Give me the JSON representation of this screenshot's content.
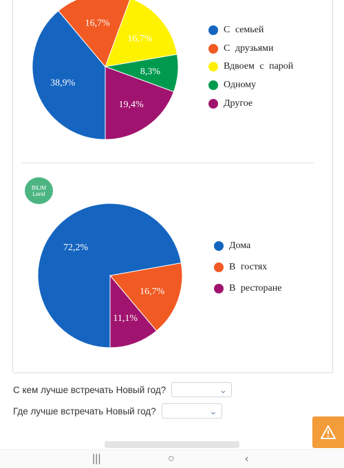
{
  "chart_data": [
    {
      "type": "pie",
      "categories": [
        "С семьей",
        "С друзьями",
        "Вдвоем с парой",
        "Одному",
        "Другое"
      ],
      "values": [
        38.9,
        16.7,
        16.7,
        8.3,
        19.4
      ],
      "value_labels": [
        "38,9%",
        "16,7%",
        "16,7%",
        "8,3%",
        "19,4%"
      ],
      "colors": [
        "#1565c0",
        "#f15a22",
        "#fff200",
        "#009a4e",
        "#a0136e"
      ],
      "legend_position": "right"
    },
    {
      "type": "pie",
      "categories": [
        "Дома",
        "В гостях",
        "В ресторане"
      ],
      "values": [
        72.2,
        16.7,
        11.1
      ],
      "value_labels": [
        "72,2%",
        "16,7%",
        "11,1%"
      ],
      "colors": [
        "#1565c0",
        "#f15a22",
        "#a0136e"
      ],
      "legend_position": "right"
    }
  ],
  "logo": {
    "line1": "BILIM",
    "line2": "Land"
  },
  "questions": [
    {
      "text": "С кем лучше встречать Новый год?",
      "value": ""
    },
    {
      "text": "Где лучше встречать Новый год?",
      "value": ""
    }
  ],
  "icons": {
    "warning": "warning-icon",
    "dropdown": "chevron-down-icon"
  },
  "navbar": {
    "recent": "|||",
    "home": "○",
    "back": "‹"
  }
}
